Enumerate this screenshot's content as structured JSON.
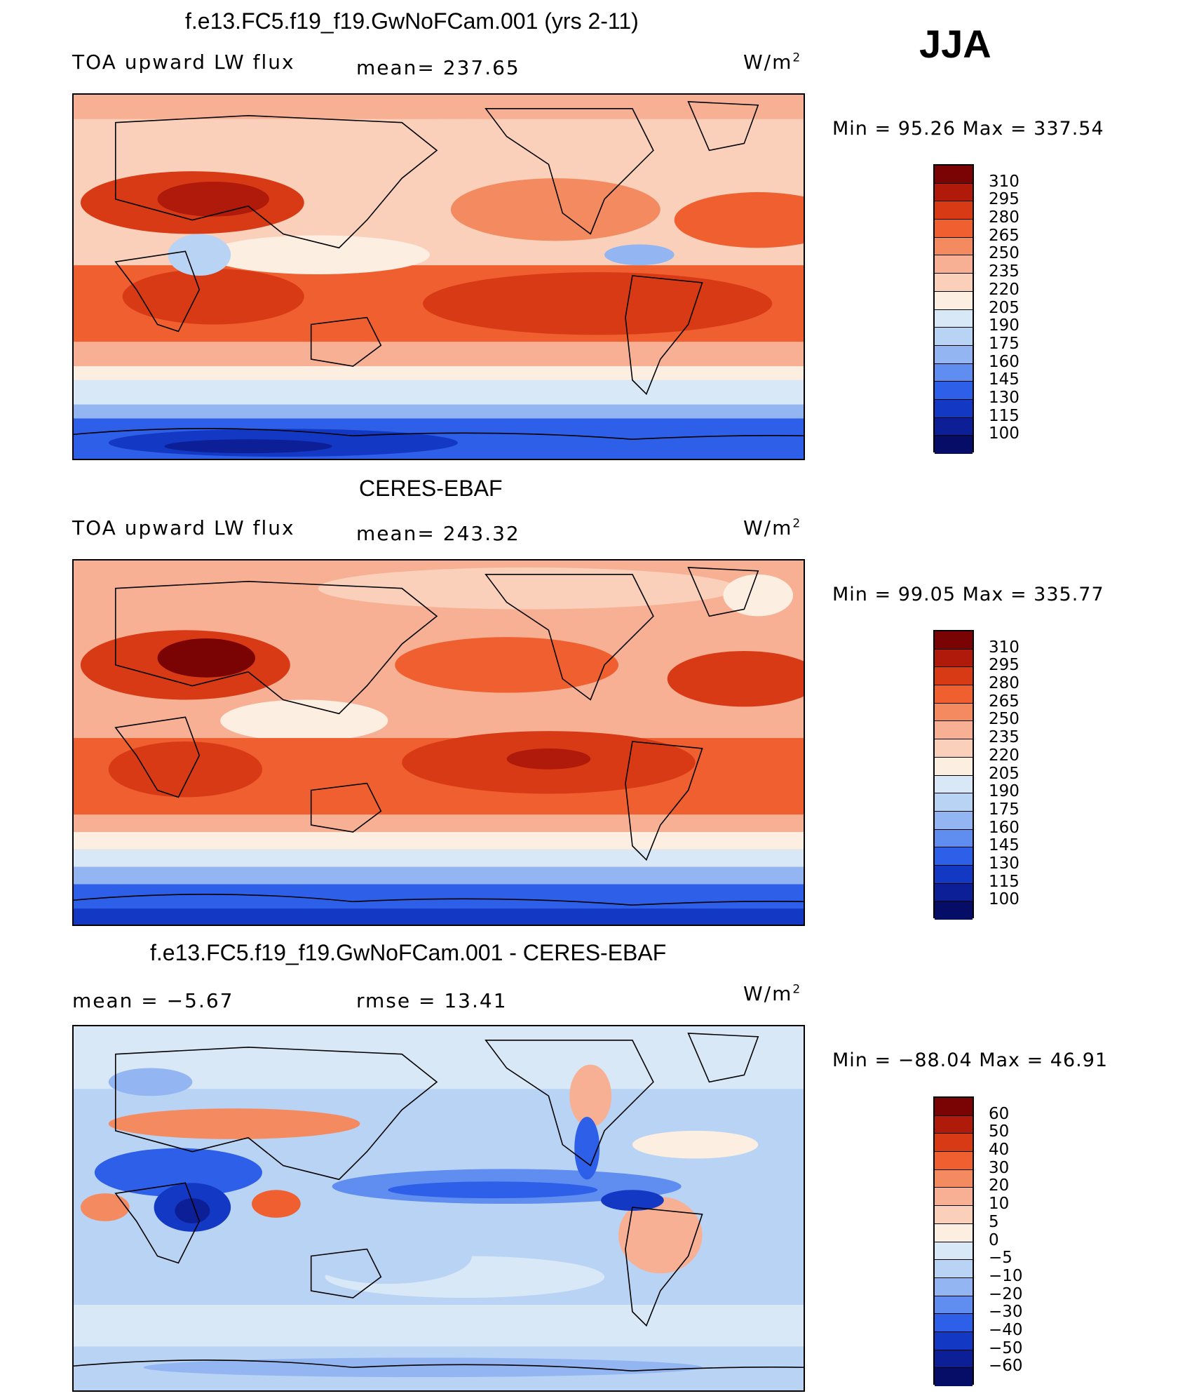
{
  "season": "JJA",
  "panels": [
    {
      "title": "f.e13.FC5.f19_f19.GwNoFCam.001 (yrs 2-11)",
      "left_label": "TOA upward LW flux",
      "center_label": "mean= 237.65",
      "units": "W/m",
      "units_sup": "2",
      "minmax": "Min =   95.26 Max = 337.54",
      "colorbar_labels": [
        "310",
        "295",
        "280",
        "265",
        "250",
        "235",
        "220",
        "205",
        "190",
        "175",
        "160",
        "145",
        "130",
        "115",
        "100"
      ]
    },
    {
      "title": "CERES-EBAF",
      "left_label": "TOA upward LW flux",
      "center_label": "mean= 243.32",
      "units": "W/m",
      "units_sup": "2",
      "minmax": "Min =   99.05 Max = 335.77",
      "colorbar_labels": [
        "310",
        "295",
        "280",
        "265",
        "250",
        "235",
        "220",
        "205",
        "190",
        "175",
        "160",
        "145",
        "130",
        "115",
        "100"
      ]
    },
    {
      "title": "f.e13.FC5.f19_f19.GwNoFCam.001 - CERES-EBAF",
      "left_label": "mean =   −5.67",
      "center_label": "rmse =   13.41",
      "units": "W/m",
      "units_sup": "2",
      "minmax": "Min = −88.04 Max =   46.91",
      "colorbar_labels": [
        "60",
        "50",
        "40",
        "30",
        "20",
        "10",
        "5",
        "0",
        "−5",
        "−10",
        "−20",
        "−30",
        "−40",
        "−50",
        "−60"
      ]
    }
  ],
  "colors": {
    "abs_scale": [
      "#7a0403",
      "#b01a0b",
      "#d93a16",
      "#ef5f2f",
      "#f48a60",
      "#f7b094",
      "#fbd0bb",
      "#fdeee2",
      "#d8e8f7",
      "#b9d3f4",
      "#93b6f2",
      "#5f8df0",
      "#2e5fe8",
      "#1238c4",
      "#0c1f97",
      "#050d66"
    ],
    "diff_scale": [
      "#7a0403",
      "#b01a0b",
      "#d93a16",
      "#ef5f2f",
      "#f48a60",
      "#f7b094",
      "#fbd0bb",
      "#fdeee2",
      "#d8e8f7",
      "#b9d3f4",
      "#93b6f2",
      "#5f8df0",
      "#2e5fe8",
      "#1238c4",
      "#0c1f97",
      "#050d66"
    ]
  }
}
